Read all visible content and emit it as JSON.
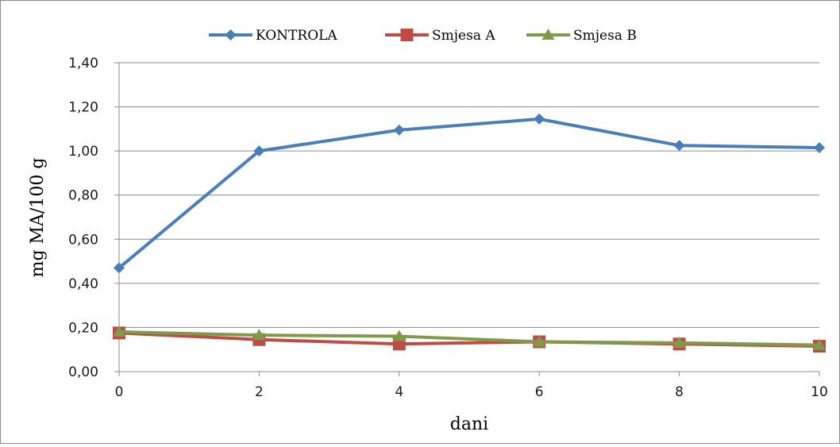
{
  "chart_data": {
    "type": "line",
    "title": "",
    "xlabel": "dani",
    "ylabel": "mg MA/100 g",
    "x": [
      0,
      2,
      4,
      6,
      8,
      10
    ],
    "x_ticks": [
      "0",
      "2",
      "4",
      "6",
      "8",
      "10"
    ],
    "ylim": [
      0,
      1.4
    ],
    "y_ticks": [
      "0,00",
      "0,20",
      "0,40",
      "0,60",
      "0,80",
      "1,00",
      "1,20",
      "1,40"
    ],
    "grid": "horizontal",
    "legend_position": "top",
    "series": [
      {
        "name": "KONTROLA",
        "color": "#4a7ebb",
        "marker": "diamond",
        "values": [
          0.47,
          1.0,
          1.095,
          1.145,
          1.025,
          1.015
        ]
      },
      {
        "name": "Smjesa A",
        "color": "#be4b48",
        "marker": "square",
        "values": [
          0.175,
          0.145,
          0.125,
          0.135,
          0.125,
          0.115
        ]
      },
      {
        "name": "Smjesa B",
        "color": "#7f9a48",
        "marker": "triangle",
        "values": [
          0.18,
          0.165,
          0.16,
          0.135,
          0.13,
          0.12
        ]
      }
    ]
  }
}
